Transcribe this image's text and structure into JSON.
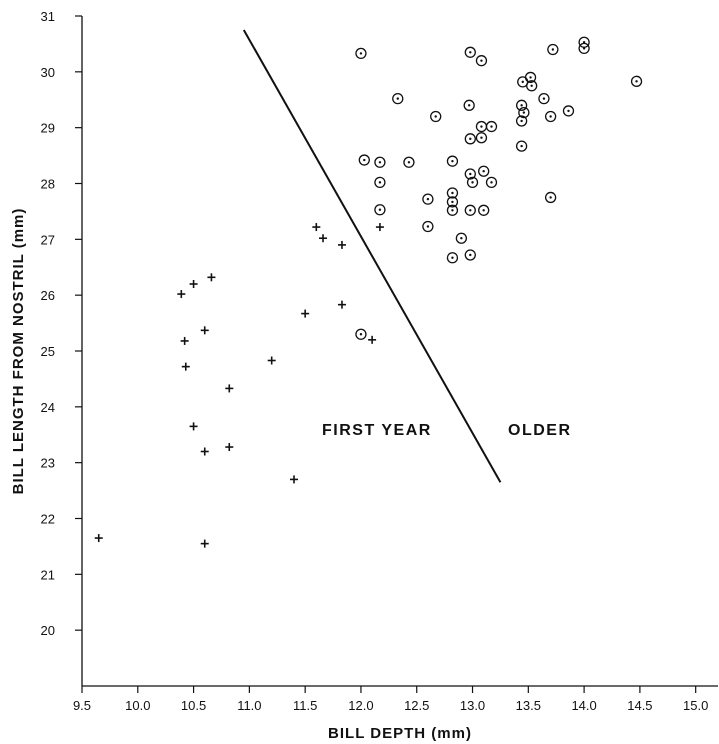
{
  "chart_data": {
    "type": "scatter",
    "xlabel": "BILL DEPTH (mm)",
    "ylabel": "BILL LENGTH FROM NOSTRIL (mm)",
    "xlim": [
      9.5,
      15.2
    ],
    "ylim": [
      19,
      31
    ],
    "xticks": [
      9.5,
      10.0,
      10.5,
      11.0,
      11.5,
      12.0,
      12.5,
      13.0,
      13.5,
      14.0,
      14.5,
      15.0
    ],
    "xtick_labels": [
      "9.5",
      "10.0",
      "10.5",
      "11.0",
      "11.5",
      "12.0",
      "12.5",
      "13.0",
      "13.5",
      "14.0",
      "14.5",
      "15.0"
    ],
    "yticks": [
      20,
      21,
      22,
      23,
      24,
      25,
      26,
      27,
      28,
      29,
      30,
      31
    ],
    "ytick_labels": [
      "20",
      "21",
      "22",
      "23",
      "24",
      "25",
      "26",
      "27",
      "28",
      "29",
      "30",
      "31"
    ],
    "grid": false,
    "annotations": [
      "FIRST YEAR",
      "OLDER"
    ],
    "divider_line": [
      [
        10.95,
        30.75
      ],
      [
        13.25,
        22.65
      ]
    ],
    "series": [
      {
        "marker": "cross",
        "points": [
          [
            9.65,
            21.65
          ],
          [
            10.6,
            21.55
          ],
          [
            11.4,
            22.7
          ],
          [
            10.6,
            23.2
          ],
          [
            10.82,
            23.28
          ],
          [
            10.5,
            23.65
          ],
          [
            10.82,
            24.33
          ],
          [
            10.43,
            24.72
          ],
          [
            11.2,
            24.83
          ],
          [
            10.42,
            25.18
          ],
          [
            10.6,
            25.37
          ],
          [
            11.5,
            25.67
          ],
          [
            11.83,
            25.83
          ],
          [
            12.1,
            25.2
          ],
          [
            10.39,
            26.02
          ],
          [
            10.5,
            26.2
          ],
          [
            10.66,
            26.32
          ],
          [
            11.83,
            26.9
          ],
          [
            11.66,
            27.02
          ],
          [
            11.6,
            27.22
          ],
          [
            12.17,
            27.22
          ]
        ]
      },
      {
        "marker": "circle-dot",
        "points": [
          [
            12.0,
            30.33
          ],
          [
            12.98,
            30.35
          ],
          [
            13.08,
            30.2
          ],
          [
            13.72,
            30.4
          ],
          [
            14.0,
            30.53
          ],
          [
            14.0,
            30.42
          ],
          [
            14.47,
            29.83
          ],
          [
            13.45,
            29.82
          ],
          [
            13.52,
            29.9
          ],
          [
            13.53,
            29.75
          ],
          [
            12.33,
            29.52
          ],
          [
            13.64,
            29.52
          ],
          [
            12.97,
            29.4
          ],
          [
            13.44,
            29.4
          ],
          [
            13.46,
            29.27
          ],
          [
            13.86,
            29.3
          ],
          [
            13.7,
            29.2
          ],
          [
            12.67,
            29.2
          ],
          [
            13.44,
            29.12
          ],
          [
            13.08,
            29.02
          ],
          [
            13.17,
            29.02
          ],
          [
            12.98,
            28.8
          ],
          [
            13.08,
            28.82
          ],
          [
            13.44,
            28.67
          ],
          [
            12.03,
            28.42
          ],
          [
            12.17,
            28.38
          ],
          [
            12.43,
            28.38
          ],
          [
            12.82,
            28.4
          ],
          [
            13.1,
            28.22
          ],
          [
            12.98,
            28.17
          ],
          [
            12.17,
            28.02
          ],
          [
            13.0,
            28.02
          ],
          [
            13.17,
            28.02
          ],
          [
            12.82,
            27.83
          ],
          [
            12.82,
            27.67
          ],
          [
            12.6,
            27.72
          ],
          [
            13.7,
            27.75
          ],
          [
            12.17,
            27.53
          ],
          [
            12.82,
            27.52
          ],
          [
            12.98,
            27.52
          ],
          [
            13.1,
            27.52
          ],
          [
            12.6,
            27.23
          ],
          [
            12.9,
            27.02
          ],
          [
            12.82,
            26.67
          ],
          [
            12.98,
            26.72
          ],
          [
            12.0,
            25.3
          ]
        ]
      }
    ]
  }
}
